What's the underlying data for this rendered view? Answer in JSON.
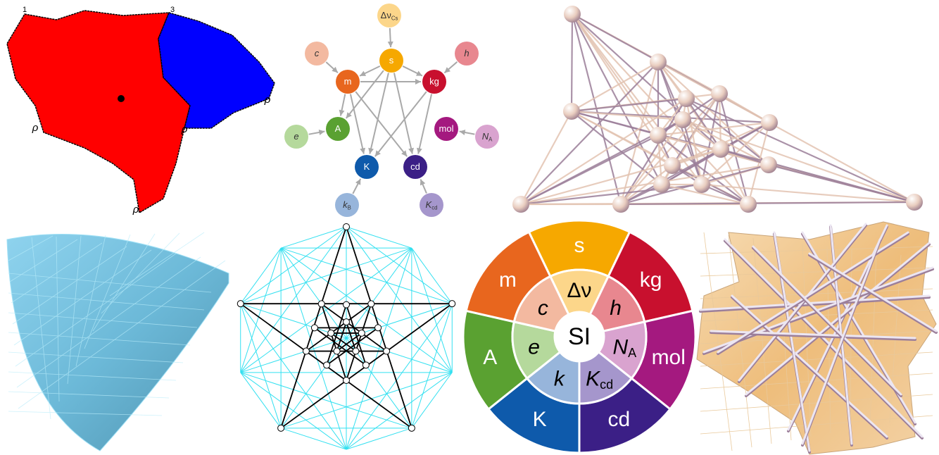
{
  "fractal": {
    "labels": [
      "1",
      "3",
      "ρ",
      "ρ",
      "ρ",
      "ρ"
    ]
  },
  "si_graph": {
    "nodes": [
      {
        "label": "Δν",
        "sub": "Cs"
      },
      {
        "label": "s"
      },
      {
        "label": "c"
      },
      {
        "label": "h"
      },
      {
        "label": "m"
      },
      {
        "label": "kg"
      },
      {
        "label": "e"
      },
      {
        "label": "A"
      },
      {
        "label": "mol"
      },
      {
        "label": "N",
        "sub": "A"
      },
      {
        "label": "K"
      },
      {
        "label": "cd"
      },
      {
        "label": "k",
        "sub": "B"
      },
      {
        "label": "K",
        "sub": "cd"
      }
    ]
  },
  "si_wheel": {
    "outer": [
      "s",
      "kg",
      "mol",
      "cd",
      "K",
      "A",
      "m"
    ],
    "inner": [
      {
        "label": "Δν"
      },
      {
        "label": "h"
      },
      {
        "label": "N",
        "sub": "A"
      },
      {
        "label": "K",
        "sub": "cd"
      },
      {
        "label": "k"
      },
      {
        "label": "e"
      },
      {
        "label": "c"
      }
    ],
    "center": "SI"
  }
}
